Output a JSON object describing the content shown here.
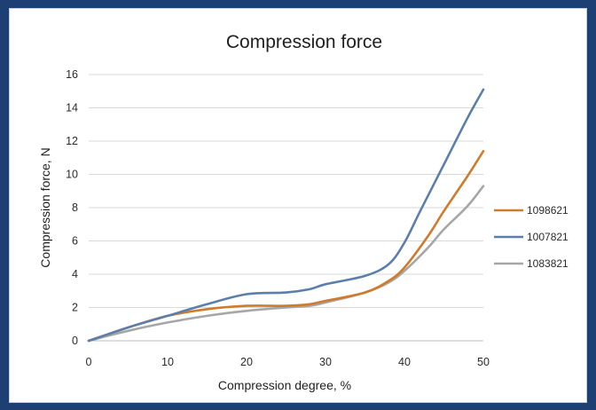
{
  "chart_data": {
    "type": "line",
    "title": "Compression force",
    "xlabel": "Compression degree, %",
    "ylabel": "Compression force, N",
    "xlim": [
      0,
      50
    ],
    "ylim": [
      0,
      16
    ],
    "xticks": [
      "0",
      "10",
      "20",
      "30",
      "40",
      "50"
    ],
    "yticks": [
      "0",
      "2",
      "4",
      "6",
      "8",
      "10",
      "12",
      "14",
      "16"
    ],
    "grid": true,
    "legend_position": "right",
    "series": [
      {
        "name": "1098621",
        "color": "#d07a2c",
        "x": [
          0,
          5,
          10,
          15,
          20,
          25,
          28,
          30,
          35,
          38,
          40,
          43,
          45,
          48,
          50
        ],
        "y": [
          0,
          0.8,
          1.5,
          1.9,
          2.1,
          2.1,
          2.2,
          2.4,
          2.9,
          3.6,
          4.4,
          6.3,
          7.8,
          9.9,
          11.4
        ]
      },
      {
        "name": "1007821",
        "color": "#5a7fac",
        "x": [
          0,
          5,
          10,
          15,
          20,
          25,
          28,
          30,
          35,
          38,
          40,
          42,
          45,
          48,
          50
        ],
        "y": [
          0,
          0.8,
          1.5,
          2.2,
          2.8,
          2.9,
          3.1,
          3.4,
          3.9,
          4.6,
          5.9,
          7.8,
          10.6,
          13.4,
          15.1
        ]
      },
      {
        "name": "1083821",
        "color": "#a6a6a6",
        "x": [
          0,
          5,
          10,
          15,
          20,
          25,
          28,
          30,
          35,
          38,
          40,
          43,
          45,
          48,
          50
        ],
        "y": [
          0,
          0.6,
          1.1,
          1.5,
          1.8,
          2.0,
          2.1,
          2.3,
          2.9,
          3.5,
          4.2,
          5.6,
          6.7,
          8.1,
          9.3
        ]
      }
    ]
  }
}
